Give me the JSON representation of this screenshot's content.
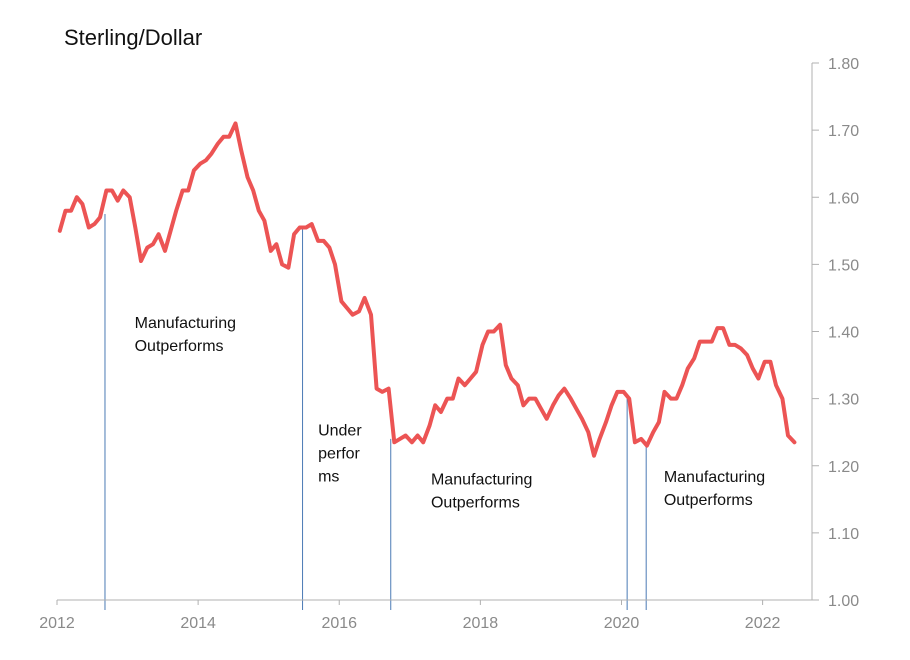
{
  "chart_data": {
    "type": "line",
    "title": "Sterling/Dollar",
    "xlabel": "",
    "ylabel": "",
    "xlim": [
      2012.0,
      2022.7
    ],
    "ylim": [
      1.0,
      1.8
    ],
    "x_ticks": [
      {
        "value": 2012,
        "label": "2012"
      },
      {
        "value": 2014,
        "label": "2014"
      },
      {
        "value": 2016,
        "label": "2016"
      },
      {
        "value": 2018,
        "label": "2018"
      },
      {
        "value": 2020,
        "label": "2020"
      },
      {
        "value": 2022,
        "label": "2022"
      }
    ],
    "y_ticks": [
      {
        "value": 1.0,
        "label": "1.00"
      },
      {
        "value": 1.1,
        "label": "1.10"
      },
      {
        "value": 1.2,
        "label": "1.20"
      },
      {
        "value": 1.3,
        "label": "1.30"
      },
      {
        "value": 1.4,
        "label": "1.40"
      },
      {
        "value": 1.5,
        "label": "1.50"
      },
      {
        "value": 1.6,
        "label": "1.60"
      },
      {
        "value": 1.7,
        "label": "1.70"
      },
      {
        "value": 1.8,
        "label": "1.80"
      }
    ],
    "y_axis_side": "right",
    "grid": false,
    "line_color": "#ec5454",
    "marker_color": "#4a7ab5",
    "series": [
      {
        "x": [
          2012.04,
          2012.12,
          2012.2,
          2012.28,
          2012.36,
          2012.45,
          2012.53,
          2012.61,
          2012.7,
          2012.78,
          2012.86,
          2012.94,
          2013.03,
          2013.11,
          2013.19,
          2013.28,
          2013.36,
          2013.44,
          2013.53,
          2013.61,
          2013.69,
          2013.78,
          2013.86,
          2013.94,
          2014.03,
          2014.11,
          2014.19,
          2014.28,
          2014.36,
          2014.44,
          2014.53,
          2014.61,
          2014.7,
          2014.78,
          2014.86,
          2014.94,
          2015.03,
          2015.11,
          2015.19,
          2015.28,
          2015.36,
          2015.44,
          2015.53,
          2015.61,
          2015.7,
          2015.78,
          2015.86,
          2015.94,
          2016.03,
          2016.11,
          2016.19,
          2016.28,
          2016.36,
          2016.45,
          2016.53,
          2016.61,
          2016.7,
          2016.78,
          2016.86,
          2016.94,
          2017.03,
          2017.11,
          2017.19,
          2017.28,
          2017.36,
          2017.44,
          2017.53,
          2017.61,
          2017.69,
          2017.78,
          2017.86,
          2017.94,
          2018.03,
          2018.11,
          2018.19,
          2018.28,
          2018.36,
          2018.44,
          2018.53,
          2018.61,
          2018.69,
          2018.78,
          2018.86,
          2018.94,
          2019.03,
          2019.11,
          2019.19,
          2019.28,
          2019.36,
          2019.44,
          2019.53,
          2019.61,
          2019.69,
          2019.78,
          2019.86,
          2019.94,
          2020.03,
          2020.11,
          2020.19,
          2020.28,
          2020.36,
          2020.45,
          2020.53,
          2020.61,
          2020.7,
          2020.78,
          2020.86,
          2020.94,
          2021.03,
          2021.11,
          2021.19,
          2021.28,
          2021.36,
          2021.44,
          2021.53,
          2021.61,
          2021.69,
          2021.78,
          2021.86,
          2021.94,
          2022.03,
          2022.11,
          2022.19,
          2022.28,
          2022.36,
          2022.45
        ],
        "y": [
          1.55,
          1.58,
          1.58,
          1.6,
          1.59,
          1.555,
          1.56,
          1.57,
          1.61,
          1.61,
          1.595,
          1.61,
          1.6,
          1.555,
          1.505,
          1.525,
          1.53,
          1.545,
          1.52,
          1.55,
          1.58,
          1.61,
          1.61,
          1.64,
          1.65,
          1.655,
          1.665,
          1.68,
          1.69,
          1.69,
          1.71,
          1.67,
          1.63,
          1.61,
          1.58,
          1.565,
          1.52,
          1.53,
          1.5,
          1.495,
          1.545,
          1.555,
          1.555,
          1.56,
          1.535,
          1.535,
          1.525,
          1.5,
          1.445,
          1.435,
          1.425,
          1.43,
          1.45,
          1.425,
          1.315,
          1.31,
          1.315,
          1.235,
          1.24,
          1.245,
          1.235,
          1.245,
          1.235,
          1.26,
          1.29,
          1.28,
          1.3,
          1.3,
          1.33,
          1.32,
          1.33,
          1.34,
          1.38,
          1.4,
          1.4,
          1.41,
          1.35,
          1.33,
          1.32,
          1.29,
          1.3,
          1.3,
          1.285,
          1.27,
          1.29,
          1.305,
          1.315,
          1.3,
          1.285,
          1.27,
          1.25,
          1.215,
          1.24,
          1.265,
          1.29,
          1.31,
          1.31,
          1.3,
          1.235,
          1.24,
          1.23,
          1.25,
          1.265,
          1.31,
          1.3,
          1.3,
          1.32,
          1.345,
          1.36,
          1.385,
          1.385,
          1.385,
          1.405,
          1.405,
          1.38,
          1.38,
          1.375,
          1.365,
          1.345,
          1.33,
          1.355,
          1.355,
          1.32,
          1.3,
          1.245,
          1.235
        ]
      }
    ],
    "markers": [
      {
        "x": 2012.68,
        "y_top": 1.575
      },
      {
        "x": 2015.48,
        "y_top": 1.555
      },
      {
        "x": 2016.73,
        "y_top": 1.24
      },
      {
        "x": 2020.08,
        "y_top": 1.3
      },
      {
        "x": 2020.35,
        "y_top": 1.23
      }
    ],
    "annotations": [
      {
        "lines": [
          "Manufacturing",
          "Outperforms"
        ],
        "x": 2013.1,
        "y": 1.405
      },
      {
        "lines": [
          "Under",
          "perfor",
          "ms"
        ],
        "x": 2015.7,
        "y": 1.245
      },
      {
        "lines": [
          "Manufacturing",
          "Outperforms"
        ],
        "x": 2017.3,
        "y": 1.172
      },
      {
        "lines": [
          "Manufacturing",
          "Outperforms"
        ],
        "x": 2020.6,
        "y": 1.176
      }
    ]
  }
}
